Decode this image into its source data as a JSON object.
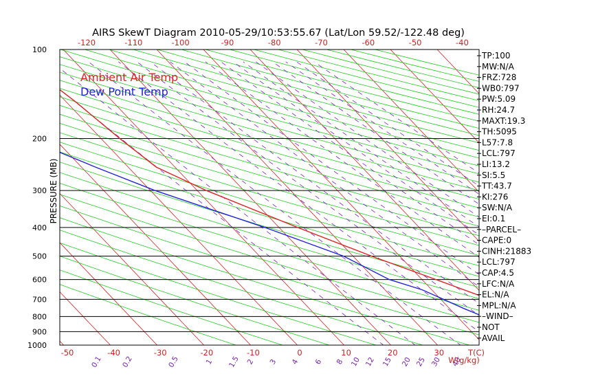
{
  "chart_data": {
    "type": "line",
    "title": "AIRS SkewT Diagram 2010-05-29/10:53:55.67 (Lat/Lon 59.52/-122.48 deg)",
    "ylabel": "PRESSURE (MB)",
    "xlabel_bottom_temp": "T(C)",
    "xlabel_bottom_mix": "W(g/kg)",
    "y_scale": "log",
    "ylim": [
      1000,
      100
    ],
    "pressure_ticks": [
      100,
      200,
      300,
      400,
      500,
      600,
      700,
      800,
      900,
      1000
    ],
    "isobars": [
      200,
      300,
      400,
      500,
      600,
      700,
      800,
      900,
      1000
    ],
    "top_temp_ticks": [
      -120,
      -110,
      -100,
      -90,
      -80,
      -70,
      -60,
      -50,
      -40
    ],
    "bottom_temp_ticks": [
      -50,
      -40,
      -30,
      -20,
      -10,
      0,
      10,
      20,
      30
    ],
    "mixing_ratio_labels": [
      "0.1",
      "0.2",
      "0.5",
      "1",
      "1.5",
      "2",
      "3",
      "4",
      "6",
      "8",
      "10",
      "12",
      "15",
      "20",
      "25",
      "30",
      "40"
    ],
    "legend": [
      {
        "name": "Ambient Air Temp",
        "color": "#dd2222"
      },
      {
        "name": "Dew Point Temp",
        "color": "#2222dd"
      }
    ],
    "colors": {
      "isotherm": "#dd2222",
      "dry_adiabat": "#22cc22",
      "moist_adiabat": "#22cc22",
      "mixing_ratio": "#7722cc",
      "axis_label": "#cc2222",
      "mix_label": "#7722aa",
      "grid": "#000000"
    },
    "series": [
      {
        "name": "Ambient Air Temp",
        "points": [
          {
            "p": 980,
            "t": -4
          },
          {
            "p": 960,
            "t": 2
          },
          {
            "p": 930,
            "t": 3.5
          },
          {
            "p": 900,
            "t": 2
          },
          {
            "p": 850,
            "t": -1
          },
          {
            "p": 800,
            "t": -3.5
          },
          {
            "p": 700,
            "t": -9.5
          },
          {
            "p": 600,
            "t": -17
          },
          {
            "p": 500,
            "t": -26
          },
          {
            "p": 400,
            "t": -36
          },
          {
            "p": 300,
            "t": -48
          },
          {
            "p": 250,
            "t": -54
          },
          {
            "p": 200,
            "t": -56
          },
          {
            "p": 150,
            "t": -58
          },
          {
            "p": 100,
            "t": -62
          }
        ]
      },
      {
        "name": "Dew Point Temp",
        "points": [
          {
            "p": 960,
            "t": -11
          },
          {
            "p": 940,
            "t": -8
          },
          {
            "p": 900,
            "t": -10
          },
          {
            "p": 850,
            "t": -12
          },
          {
            "p": 750,
            "t": -17
          },
          {
            "p": 650,
            "t": -22
          },
          {
            "p": 600,
            "t": -27
          },
          {
            "p": 500,
            "t": -32
          },
          {
            "p": 400,
            "t": -43
          },
          {
            "p": 300,
            "t": -59
          },
          {
            "p": 250,
            "t": -67
          },
          {
            "p": 200,
            "t": -76
          },
          {
            "p": 150,
            "t": -83
          },
          {
            "p": 100,
            "t": -89
          }
        ]
      }
    ]
  },
  "indices": [
    "TP:100",
    "MW:N/A",
    "FRZ:728",
    "WB0:797",
    "PW:5.09",
    "RH:24.7",
    "MAXT:19.3",
    "TH:5095",
    "L57:7.8",
    "LCL:797",
    "LI:13.2",
    "SI:5.5",
    "TT:43.7",
    "KI:276",
    "SW:N/A",
    "EI:0.1",
    "–PARCEL–",
    "CAPE:0",
    "CINH:21883",
    "LCL:797",
    "CAP:4.5",
    "LFC:N/A",
    "EL:N/A",
    "MPL:N/A",
    "–WIND–",
    "NOT",
    "AVAIL"
  ]
}
